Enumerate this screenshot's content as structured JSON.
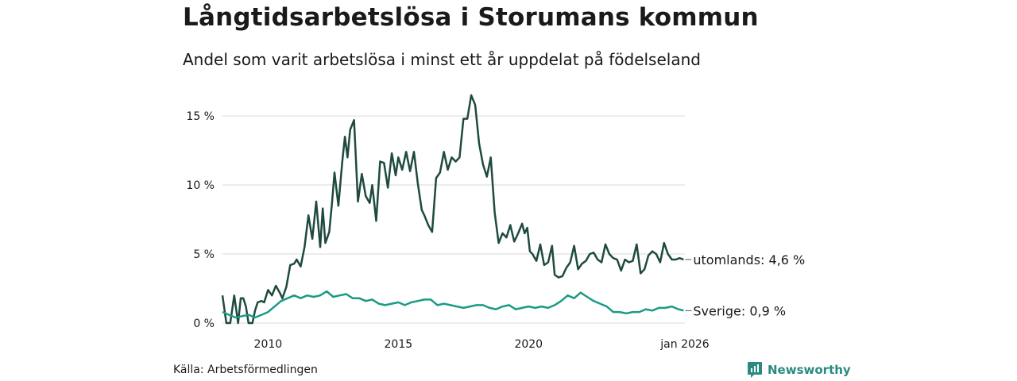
{
  "title": "Långtidsarbetslösa i Storumans kommun",
  "subtitle": "Andel som varit arbetslösa i minst ett år uppdelat på födelseland",
  "source": "Källa: Arbetsförmedlingen",
  "brand": "Newsworthy",
  "colors": {
    "utomlands": "#1f4a40",
    "sverige": "#1b9a86",
    "grid": "#d9d9d9",
    "brand": "#2b8a7e"
  },
  "chart_data": {
    "type": "line",
    "title": "Långtidsarbetslösa i Storumans kommun",
    "xlabel": "",
    "ylabel": "",
    "xlim": [
      2008.25,
      2026.0
    ],
    "ylim": [
      0,
      16.5
    ],
    "grid": true,
    "y_ticks": [
      {
        "value": 0,
        "label": "0 %"
      },
      {
        "value": 5,
        "label": "5 %"
      },
      {
        "value": 10,
        "label": "10 %"
      },
      {
        "value": 15,
        "label": "15 %"
      }
    ],
    "x_ticks": [
      {
        "value": 2010,
        "label": "2010"
      },
      {
        "value": 2015,
        "label": "2015"
      },
      {
        "value": 2020,
        "label": "2020"
      },
      {
        "value": 2026,
        "label": "jan 2026"
      }
    ],
    "series": [
      {
        "name": "utomlands",
        "end_label": "utomlands: 4,6 %",
        "x": [
          2008.25,
          2008.4,
          2008.55,
          2008.7,
          2008.85,
          2008.95,
          2009.05,
          2009.15,
          2009.25,
          2009.4,
          2009.5,
          2009.6,
          2009.75,
          2009.85,
          2010.0,
          2010.15,
          2010.3,
          2010.45,
          2010.55,
          2010.7,
          2010.85,
          2011.0,
          2011.1,
          2011.25,
          2011.4,
          2011.55,
          2011.7,
          2011.85,
          2012.0,
          2012.1,
          2012.2,
          2012.35,
          2012.45,
          2012.55,
          2012.7,
          2012.85,
          2012.95,
          2013.05,
          2013.15,
          2013.3,
          2013.45,
          2013.6,
          2013.75,
          2013.9,
          2014.0,
          2014.15,
          2014.3,
          2014.45,
          2014.6,
          2014.75,
          2014.9,
          2015.0,
          2015.15,
          2015.3,
          2015.45,
          2015.6,
          2015.75,
          2015.9,
          2016.0,
          2016.15,
          2016.3,
          2016.45,
          2016.6,
          2016.75,
          2016.9,
          2017.05,
          2017.2,
          2017.35,
          2017.5,
          2017.65,
          2017.8,
          2017.95,
          2018.1,
          2018.25,
          2018.4,
          2018.55,
          2018.7,
          2018.85,
          2019.0,
          2019.15,
          2019.3,
          2019.45,
          2019.6,
          2019.75,
          2019.85,
          2019.95,
          2020.05,
          2020.15,
          2020.3,
          2020.45,
          2020.6,
          2020.75,
          2020.9,
          2021.0,
          2021.15,
          2021.3,
          2021.45,
          2021.6,
          2021.75,
          2021.9,
          2022.05,
          2022.2,
          2022.35,
          2022.5,
          2022.65,
          2022.8,
          2022.95,
          2023.1,
          2023.25,
          2023.4,
          2023.55,
          2023.7,
          2023.85,
          2024.0,
          2024.15,
          2024.3,
          2024.45,
          2024.6,
          2024.75,
          2024.9,
          2025.05,
          2025.2,
          2025.35,
          2025.5,
          2025.65,
          2025.8,
          2025.95
        ],
        "values": [
          2.0,
          0.0,
          0.0,
          2.0,
          0.0,
          1.8,
          1.8,
          1.2,
          0.0,
          0.0,
          0.9,
          1.5,
          1.6,
          1.5,
          2.4,
          2.0,
          2.7,
          2.2,
          1.8,
          2.6,
          4.2,
          4.3,
          4.6,
          4.1,
          5.5,
          7.8,
          6.1,
          8.8,
          5.5,
          8.3,
          5.8,
          6.6,
          8.6,
          10.9,
          8.5,
          11.7,
          13.5,
          12.0,
          14.0,
          14.7,
          8.8,
          10.8,
          9.2,
          8.7,
          10.0,
          7.4,
          11.7,
          11.6,
          9.8,
          12.3,
          10.7,
          12.0,
          11.1,
          12.4,
          11.0,
          12.4,
          10.1,
          8.2,
          7.8,
          7.1,
          6.6,
          10.5,
          10.9,
          12.4,
          11.1,
          12.0,
          11.7,
          12.0,
          14.8,
          14.8,
          16.5,
          15.8,
          13.0,
          11.5,
          10.6,
          12.0,
          8.0,
          5.8,
          6.5,
          6.2,
          7.1,
          5.9,
          6.5,
          7.2,
          6.5,
          6.9,
          5.2,
          5.0,
          4.5,
          5.7,
          4.2,
          4.4,
          5.6,
          3.5,
          3.3,
          3.4,
          4.0,
          4.4,
          5.6,
          3.9,
          4.3,
          4.5,
          5.0,
          5.1,
          4.6,
          4.4,
          5.7,
          5.0,
          4.7,
          4.6,
          3.8,
          4.6,
          4.4,
          4.5,
          5.7,
          3.6,
          3.9,
          4.9,
          5.2,
          5.0,
          4.4,
          5.8,
          5.0,
          4.6,
          4.6,
          4.7,
          4.6
        ]
      },
      {
        "name": "Sverige",
        "end_label": "Sverige: 0,9 %",
        "x": [
          2008.25,
          2008.5,
          2008.75,
          2009.0,
          2009.25,
          2009.5,
          2009.75,
          2010.0,
          2010.25,
          2010.5,
          2010.75,
          2011.0,
          2011.25,
          2011.5,
          2011.75,
          2012.0,
          2012.25,
          2012.5,
          2012.75,
          2013.0,
          2013.25,
          2013.5,
          2013.75,
          2014.0,
          2014.25,
          2014.5,
          2014.75,
          2015.0,
          2015.25,
          2015.5,
          2015.75,
          2016.0,
          2016.25,
          2016.5,
          2016.75,
          2017.0,
          2017.25,
          2017.5,
          2017.75,
          2018.0,
          2018.25,
          2018.5,
          2018.75,
          2019.0,
          2019.25,
          2019.5,
          2019.75,
          2020.0,
          2020.25,
          2020.5,
          2020.75,
          2021.0,
          2021.25,
          2021.5,
          2021.75,
          2022.0,
          2022.25,
          2022.5,
          2022.75,
          2023.0,
          2023.25,
          2023.5,
          2023.75,
          2024.0,
          2024.25,
          2024.5,
          2024.75,
          2025.0,
          2025.25,
          2025.5,
          2025.75,
          2025.95
        ],
        "values": [
          0.8,
          0.6,
          0.4,
          0.5,
          0.6,
          0.4,
          0.6,
          0.8,
          1.2,
          1.6,
          1.8,
          2.0,
          1.8,
          2.0,
          1.9,
          2.0,
          2.3,
          1.9,
          2.0,
          2.1,
          1.8,
          1.8,
          1.6,
          1.7,
          1.4,
          1.3,
          1.4,
          1.5,
          1.3,
          1.5,
          1.6,
          1.7,
          1.7,
          1.3,
          1.4,
          1.3,
          1.2,
          1.1,
          1.2,
          1.3,
          1.3,
          1.1,
          1.0,
          1.2,
          1.3,
          1.0,
          1.1,
          1.2,
          1.1,
          1.2,
          1.1,
          1.3,
          1.6,
          2.0,
          1.8,
          2.2,
          1.9,
          1.6,
          1.4,
          1.2,
          0.8,
          0.8,
          0.7,
          0.8,
          0.8,
          1.0,
          0.9,
          1.1,
          1.1,
          1.2,
          1.0,
          0.9
        ]
      }
    ]
  }
}
